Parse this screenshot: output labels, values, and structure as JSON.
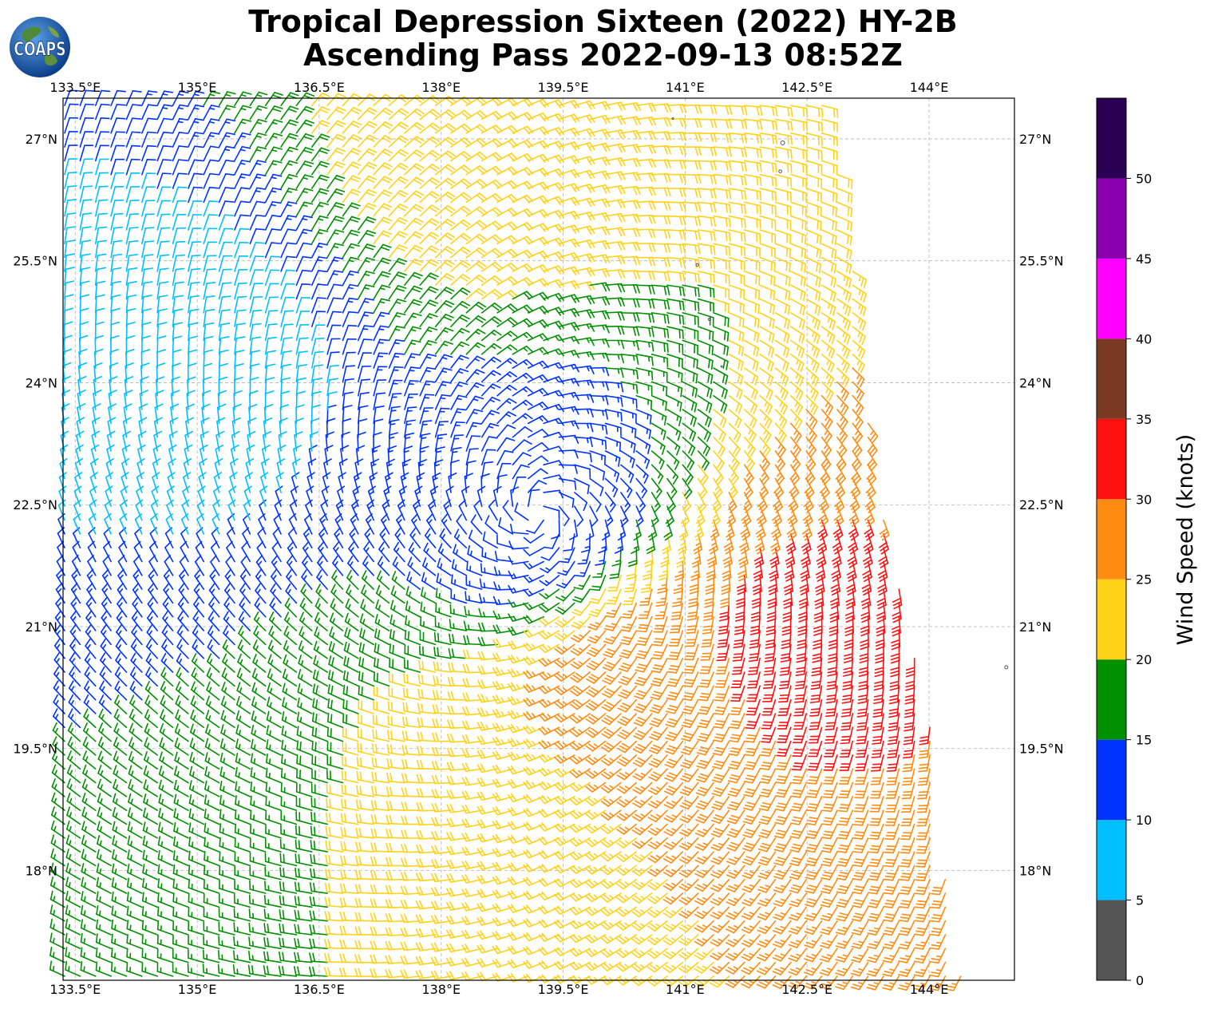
{
  "header": {
    "line1": "Tropical Depression Sixteen (2022) HY-2B",
    "line2": "Ascending Pass 2022-09-13 08:52Z",
    "logo_text": "COAPS"
  },
  "chart_data": {
    "type": "wind-barb-map",
    "title": "Tropical Depression Sixteen (2022) HY-2B Ascending Pass 2022-09-13 08:52Z",
    "storm_center": {
      "lon": 139.2,
      "lat": 22.4
    },
    "xlim": [
      133.35,
      145.05
    ],
    "ylim": [
      16.65,
      27.5
    ],
    "x_ticks": [
      133.5,
      135.0,
      136.5,
      138.0,
      139.5,
      141.0,
      142.5,
      144.0
    ],
    "x_tick_labels": [
      "133.5°E",
      "135°E",
      "136.5°E",
      "138°E",
      "139.5°E",
      "141°E",
      "142.5°E",
      "144°E"
    ],
    "y_ticks": [
      27.0,
      25.5,
      24.0,
      22.5,
      21.0,
      19.5,
      18.0
    ],
    "y_tick_labels": [
      "27°N",
      "25.5°N",
      "24°N",
      "22.5°N",
      "21°N",
      "19.5°N",
      "18°N"
    ],
    "grid": true,
    "colorbar": {
      "label": "Wind Speed (knots)",
      "bounds": [
        0,
        5,
        10,
        15,
        20,
        25,
        30,
        35,
        40,
        45,
        50,
        55
      ],
      "tick_labels": [
        "0",
        "5",
        "10",
        "15",
        "20",
        "25",
        "30",
        "35",
        "40",
        "45",
        "50"
      ],
      "colors": [
        "#555555",
        "#00bfff",
        "#0033ff",
        "#009000",
        "#ffd21a",
        "#ff8c10",
        "#ff1010",
        "#7a3a22",
        "#ff00ff",
        "#8a00b0",
        "#2b0052"
      ]
    },
    "swath_bounds": {
      "north_lat": 27.5,
      "south_lat": 16.65,
      "west_lon": 133.35,
      "east_edge": [
        {
          "lat": 27.4,
          "lon": 142.75
        },
        {
          "lat": 25.5,
          "lon": 143.05
        },
        {
          "lat": 24.0,
          "lon": 143.2
        },
        {
          "lat": 22.5,
          "lon": 143.4
        },
        {
          "lat": 21.0,
          "lon": 143.75
        },
        {
          "lat": 19.5,
          "lon": 144.1
        },
        {
          "lat": 18.0,
          "lon": 144.2
        },
        {
          "lat": 16.7,
          "lon": 144.4
        }
      ]
    },
    "wind_field": {
      "description": "Cyclonic circulation around depression center; weakest winds near center and to the northwest, strongest (30-35 kt) to the southeast",
      "speed_regions": [
        {
          "region": "center",
          "lon": 139.2,
          "lat": 22.4,
          "knots": 12
        },
        {
          "region": "northwest",
          "lon": 134.8,
          "lat": 24.0,
          "knots": 8
        },
        {
          "region": "north",
          "lon": 138.5,
          "lat": 26.8,
          "knots": 22
        },
        {
          "region": "east-southeast",
          "lon": 142.3,
          "lat": 20.9,
          "knots": 31
        },
        {
          "region": "southeast",
          "lon": 140.5,
          "lat": 20.4,
          "knots": 28
        },
        {
          "region": "south",
          "lon": 138.5,
          "lat": 18.5,
          "knots": 22
        },
        {
          "region": "southwest",
          "lon": 134.5,
          "lat": 19.0,
          "knots": 15
        }
      ]
    }
  }
}
